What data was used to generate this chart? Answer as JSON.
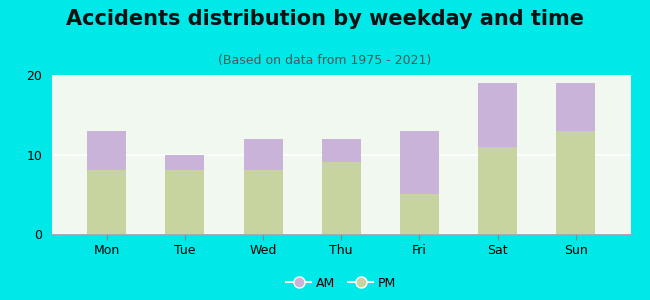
{
  "title": "Accidents distribution by weekday and time",
  "subtitle": "(Based on data from 1975 - 2021)",
  "categories": [
    "Mon",
    "Tue",
    "Wed",
    "Thu",
    "Fri",
    "Sat",
    "Sun"
  ],
  "pm_values": [
    8,
    8,
    8,
    9,
    5,
    11,
    13
  ],
  "am_values": [
    5,
    2,
    4,
    3,
    8,
    8,
    6
  ],
  "am_color": "#c9b3d9",
  "pm_color": "#c8d4a0",
  "background_color": "#00e8e8",
  "plot_bg_color": "#f0f8f0",
  "ylim": [
    0,
    20
  ],
  "yticks": [
    0,
    10,
    20
  ],
  "legend_am": "AM",
  "legend_pm": "PM",
  "title_fontsize": 15,
  "subtitle_fontsize": 9,
  "tick_fontsize": 9,
  "legend_fontsize": 9,
  "bar_width": 0.5
}
